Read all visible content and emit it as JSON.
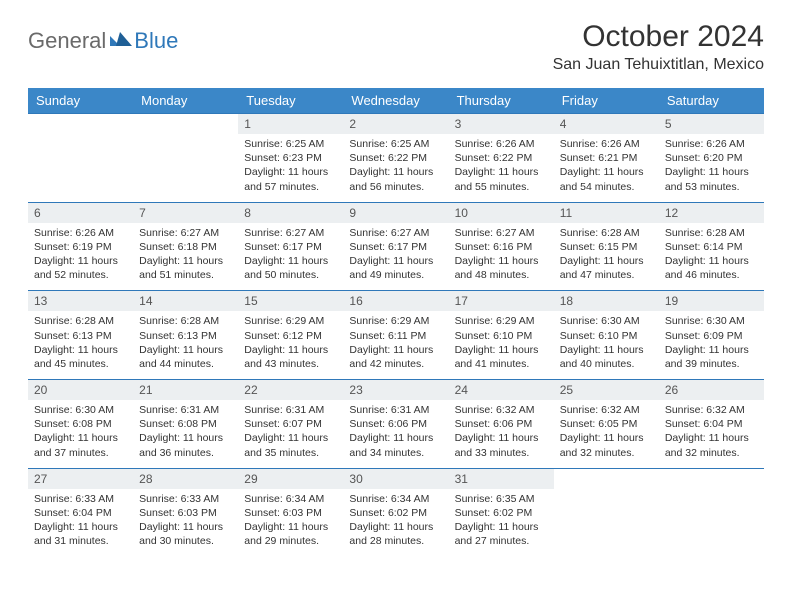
{
  "brand": {
    "general": "General",
    "blue": "Blue"
  },
  "title": "October 2024",
  "location": "San Juan Tehuixtitlan, Mexico",
  "colors": {
    "header_bg": "#3b87c8",
    "header_text": "#ffffff",
    "divider": "#2f78b9",
    "daynum_bg": "#eceff1",
    "body_text": "#333333",
    "logo_gray": "#6a6a6a",
    "logo_blue": "#2f78b9",
    "page_bg": "#ffffff"
  },
  "typography": {
    "title_fontsize": 30,
    "location_fontsize": 16,
    "header_fontsize": 13,
    "daynum_fontsize": 12,
    "cell_fontsize": 10.5,
    "font_family": "Arial"
  },
  "day_headers": [
    "Sunday",
    "Monday",
    "Tuesday",
    "Wednesday",
    "Thursday",
    "Friday",
    "Saturday"
  ],
  "weeks": [
    [
      null,
      null,
      {
        "n": "1",
        "sr": "Sunrise: 6:25 AM",
        "ss": "Sunset: 6:23 PM",
        "dl": "Daylight: 11 hours and 57 minutes."
      },
      {
        "n": "2",
        "sr": "Sunrise: 6:25 AM",
        "ss": "Sunset: 6:22 PM",
        "dl": "Daylight: 11 hours and 56 minutes."
      },
      {
        "n": "3",
        "sr": "Sunrise: 6:26 AM",
        "ss": "Sunset: 6:22 PM",
        "dl": "Daylight: 11 hours and 55 minutes."
      },
      {
        "n": "4",
        "sr": "Sunrise: 6:26 AM",
        "ss": "Sunset: 6:21 PM",
        "dl": "Daylight: 11 hours and 54 minutes."
      },
      {
        "n": "5",
        "sr": "Sunrise: 6:26 AM",
        "ss": "Sunset: 6:20 PM",
        "dl": "Daylight: 11 hours and 53 minutes."
      }
    ],
    [
      {
        "n": "6",
        "sr": "Sunrise: 6:26 AM",
        "ss": "Sunset: 6:19 PM",
        "dl": "Daylight: 11 hours and 52 minutes."
      },
      {
        "n": "7",
        "sr": "Sunrise: 6:27 AM",
        "ss": "Sunset: 6:18 PM",
        "dl": "Daylight: 11 hours and 51 minutes."
      },
      {
        "n": "8",
        "sr": "Sunrise: 6:27 AM",
        "ss": "Sunset: 6:17 PM",
        "dl": "Daylight: 11 hours and 50 minutes."
      },
      {
        "n": "9",
        "sr": "Sunrise: 6:27 AM",
        "ss": "Sunset: 6:17 PM",
        "dl": "Daylight: 11 hours and 49 minutes."
      },
      {
        "n": "10",
        "sr": "Sunrise: 6:27 AM",
        "ss": "Sunset: 6:16 PM",
        "dl": "Daylight: 11 hours and 48 minutes."
      },
      {
        "n": "11",
        "sr": "Sunrise: 6:28 AM",
        "ss": "Sunset: 6:15 PM",
        "dl": "Daylight: 11 hours and 47 minutes."
      },
      {
        "n": "12",
        "sr": "Sunrise: 6:28 AM",
        "ss": "Sunset: 6:14 PM",
        "dl": "Daylight: 11 hours and 46 minutes."
      }
    ],
    [
      {
        "n": "13",
        "sr": "Sunrise: 6:28 AM",
        "ss": "Sunset: 6:13 PM",
        "dl": "Daylight: 11 hours and 45 minutes."
      },
      {
        "n": "14",
        "sr": "Sunrise: 6:28 AM",
        "ss": "Sunset: 6:13 PM",
        "dl": "Daylight: 11 hours and 44 minutes."
      },
      {
        "n": "15",
        "sr": "Sunrise: 6:29 AM",
        "ss": "Sunset: 6:12 PM",
        "dl": "Daylight: 11 hours and 43 minutes."
      },
      {
        "n": "16",
        "sr": "Sunrise: 6:29 AM",
        "ss": "Sunset: 6:11 PM",
        "dl": "Daylight: 11 hours and 42 minutes."
      },
      {
        "n": "17",
        "sr": "Sunrise: 6:29 AM",
        "ss": "Sunset: 6:10 PM",
        "dl": "Daylight: 11 hours and 41 minutes."
      },
      {
        "n": "18",
        "sr": "Sunrise: 6:30 AM",
        "ss": "Sunset: 6:10 PM",
        "dl": "Daylight: 11 hours and 40 minutes."
      },
      {
        "n": "19",
        "sr": "Sunrise: 6:30 AM",
        "ss": "Sunset: 6:09 PM",
        "dl": "Daylight: 11 hours and 39 minutes."
      }
    ],
    [
      {
        "n": "20",
        "sr": "Sunrise: 6:30 AM",
        "ss": "Sunset: 6:08 PM",
        "dl": "Daylight: 11 hours and 37 minutes."
      },
      {
        "n": "21",
        "sr": "Sunrise: 6:31 AM",
        "ss": "Sunset: 6:08 PM",
        "dl": "Daylight: 11 hours and 36 minutes."
      },
      {
        "n": "22",
        "sr": "Sunrise: 6:31 AM",
        "ss": "Sunset: 6:07 PM",
        "dl": "Daylight: 11 hours and 35 minutes."
      },
      {
        "n": "23",
        "sr": "Sunrise: 6:31 AM",
        "ss": "Sunset: 6:06 PM",
        "dl": "Daylight: 11 hours and 34 minutes."
      },
      {
        "n": "24",
        "sr": "Sunrise: 6:32 AM",
        "ss": "Sunset: 6:06 PM",
        "dl": "Daylight: 11 hours and 33 minutes."
      },
      {
        "n": "25",
        "sr": "Sunrise: 6:32 AM",
        "ss": "Sunset: 6:05 PM",
        "dl": "Daylight: 11 hours and 32 minutes."
      },
      {
        "n": "26",
        "sr": "Sunrise: 6:32 AM",
        "ss": "Sunset: 6:04 PM",
        "dl": "Daylight: 11 hours and 32 minutes."
      }
    ],
    [
      {
        "n": "27",
        "sr": "Sunrise: 6:33 AM",
        "ss": "Sunset: 6:04 PM",
        "dl": "Daylight: 11 hours and 31 minutes."
      },
      {
        "n": "28",
        "sr": "Sunrise: 6:33 AM",
        "ss": "Sunset: 6:03 PM",
        "dl": "Daylight: 11 hours and 30 minutes."
      },
      {
        "n": "29",
        "sr": "Sunrise: 6:34 AM",
        "ss": "Sunset: 6:03 PM",
        "dl": "Daylight: 11 hours and 29 minutes."
      },
      {
        "n": "30",
        "sr": "Sunrise: 6:34 AM",
        "ss": "Sunset: 6:02 PM",
        "dl": "Daylight: 11 hours and 28 minutes."
      },
      {
        "n": "31",
        "sr": "Sunrise: 6:35 AM",
        "ss": "Sunset: 6:02 PM",
        "dl": "Daylight: 11 hours and 27 minutes."
      },
      null,
      null
    ]
  ]
}
